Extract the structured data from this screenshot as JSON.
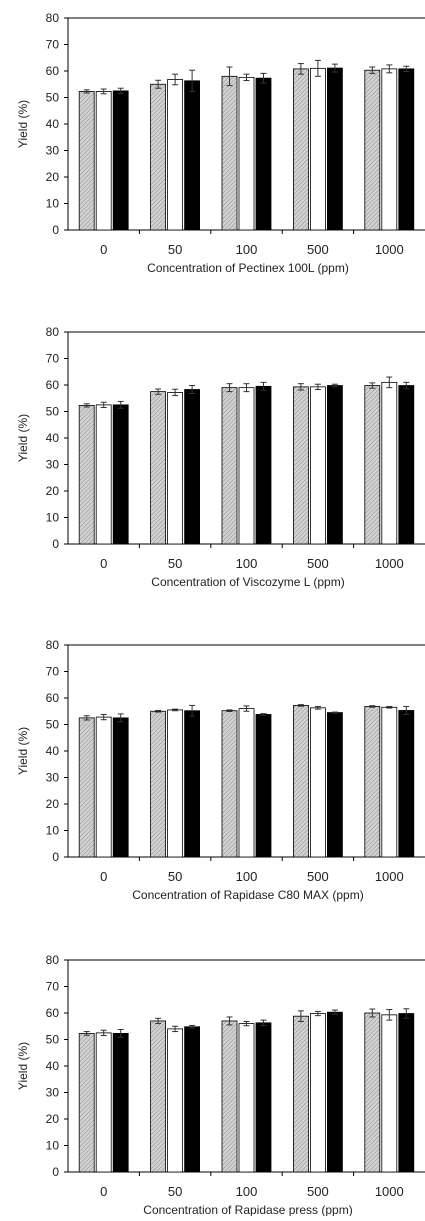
{
  "chart_data": [
    {
      "type": "bar",
      "ylabel": "Yield (%)",
      "xlabel": "Concentration of Pectinex 100L (ppm)",
      "ylim": [
        0,
        80
      ],
      "yticks": [
        0,
        10,
        20,
        30,
        40,
        50,
        60,
        70,
        80
      ],
      "categories": [
        "0",
        "50",
        "100",
        "500",
        "1000"
      ],
      "legend": "none",
      "grid": false,
      "series": [
        {
          "fill": "hatched-gray",
          "values": [
            52.3,
            55.0,
            58.0,
            60.8,
            60.3
          ],
          "errors": [
            0.6,
            1.5,
            3.5,
            2.0,
            1.2
          ]
        },
        {
          "fill": "white",
          "values": [
            52.3,
            56.8,
            57.6,
            61.0,
            60.8
          ],
          "errors": [
            0.9,
            2.0,
            1.2,
            3.0,
            1.5
          ]
        },
        {
          "fill": "black",
          "values": [
            52.5,
            56.3,
            57.3,
            61.1,
            60.8
          ],
          "errors": [
            1.0,
            4.0,
            1.8,
            1.5,
            1.0
          ]
        }
      ]
    },
    {
      "type": "bar",
      "ylabel": "Yield (%)",
      "xlabel": "Concentration of Viscozyme L (ppm)",
      "ylim": [
        0,
        80
      ],
      "yticks": [
        0,
        10,
        20,
        30,
        40,
        50,
        60,
        70,
        80
      ],
      "categories": [
        "0",
        "50",
        "100",
        "500",
        "1000"
      ],
      "legend": "none",
      "grid": false,
      "series": [
        {
          "fill": "hatched-gray",
          "values": [
            52.3,
            57.5,
            59.0,
            59.3,
            59.8
          ],
          "errors": [
            0.6,
            1.0,
            1.5,
            1.2,
            1.0
          ]
        },
        {
          "fill": "white",
          "values": [
            52.5,
            57.2,
            59.0,
            59.3,
            61.0
          ],
          "errors": [
            1.0,
            1.2,
            1.5,
            1.0,
            2.0
          ]
        },
        {
          "fill": "black",
          "values": [
            52.5,
            58.3,
            59.5,
            59.8,
            59.8
          ],
          "errors": [
            1.3,
            1.5,
            1.5,
            0.5,
            1.2
          ]
        }
      ]
    },
    {
      "type": "bar",
      "ylabel": "Yield (%)",
      "xlabel": "Concentration of Rapidase C80 MAX (ppm)",
      "ylim": [
        0,
        80
      ],
      "yticks": [
        0,
        10,
        20,
        30,
        40,
        50,
        60,
        70,
        80
      ],
      "categories": [
        "0",
        "50",
        "100",
        "500",
        "1000"
      ],
      "legend": "none",
      "grid": false,
      "series": [
        {
          "fill": "hatched-gray",
          "values": [
            52.5,
            55.0,
            55.2,
            57.2,
            56.8
          ],
          "errors": [
            0.8,
            0.3,
            0.3,
            0.3,
            0.3
          ]
        },
        {
          "fill": "white",
          "values": [
            52.8,
            55.5,
            56.0,
            56.3,
            56.5
          ],
          "errors": [
            1.0,
            0.3,
            1.0,
            0.5,
            0.3
          ]
        },
        {
          "fill": "black",
          "values": [
            52.5,
            55.2,
            53.8,
            54.5,
            55.3
          ],
          "errors": [
            1.5,
            2.0,
            0.3,
            0.2,
            1.5
          ]
        }
      ]
    },
    {
      "type": "bar",
      "ylabel": "Yield (%)",
      "xlabel": "Concentration of Rapidase press (ppm)",
      "ylim": [
        0,
        80
      ],
      "yticks": [
        0,
        10,
        20,
        30,
        40,
        50,
        60,
        70,
        80
      ],
      "categories": [
        "0",
        "50",
        "100",
        "500",
        "1000"
      ],
      "legend": "none",
      "grid": false,
      "series": [
        {
          "fill": "hatched-gray",
          "values": [
            52.3,
            57.0,
            57.0,
            58.8,
            60.0
          ],
          "errors": [
            0.7,
            1.0,
            1.5,
            2.0,
            1.5
          ]
        },
        {
          "fill": "white",
          "values": [
            52.5,
            54.0,
            56.0,
            59.8,
            59.3
          ],
          "errors": [
            1.0,
            1.0,
            0.8,
            0.8,
            2.0
          ]
        },
        {
          "fill": "black",
          "values": [
            52.3,
            54.8,
            56.3,
            60.3,
            59.8
          ],
          "errors": [
            1.5,
            0.5,
            1.0,
            0.8,
            1.8
          ]
        }
      ]
    }
  ]
}
